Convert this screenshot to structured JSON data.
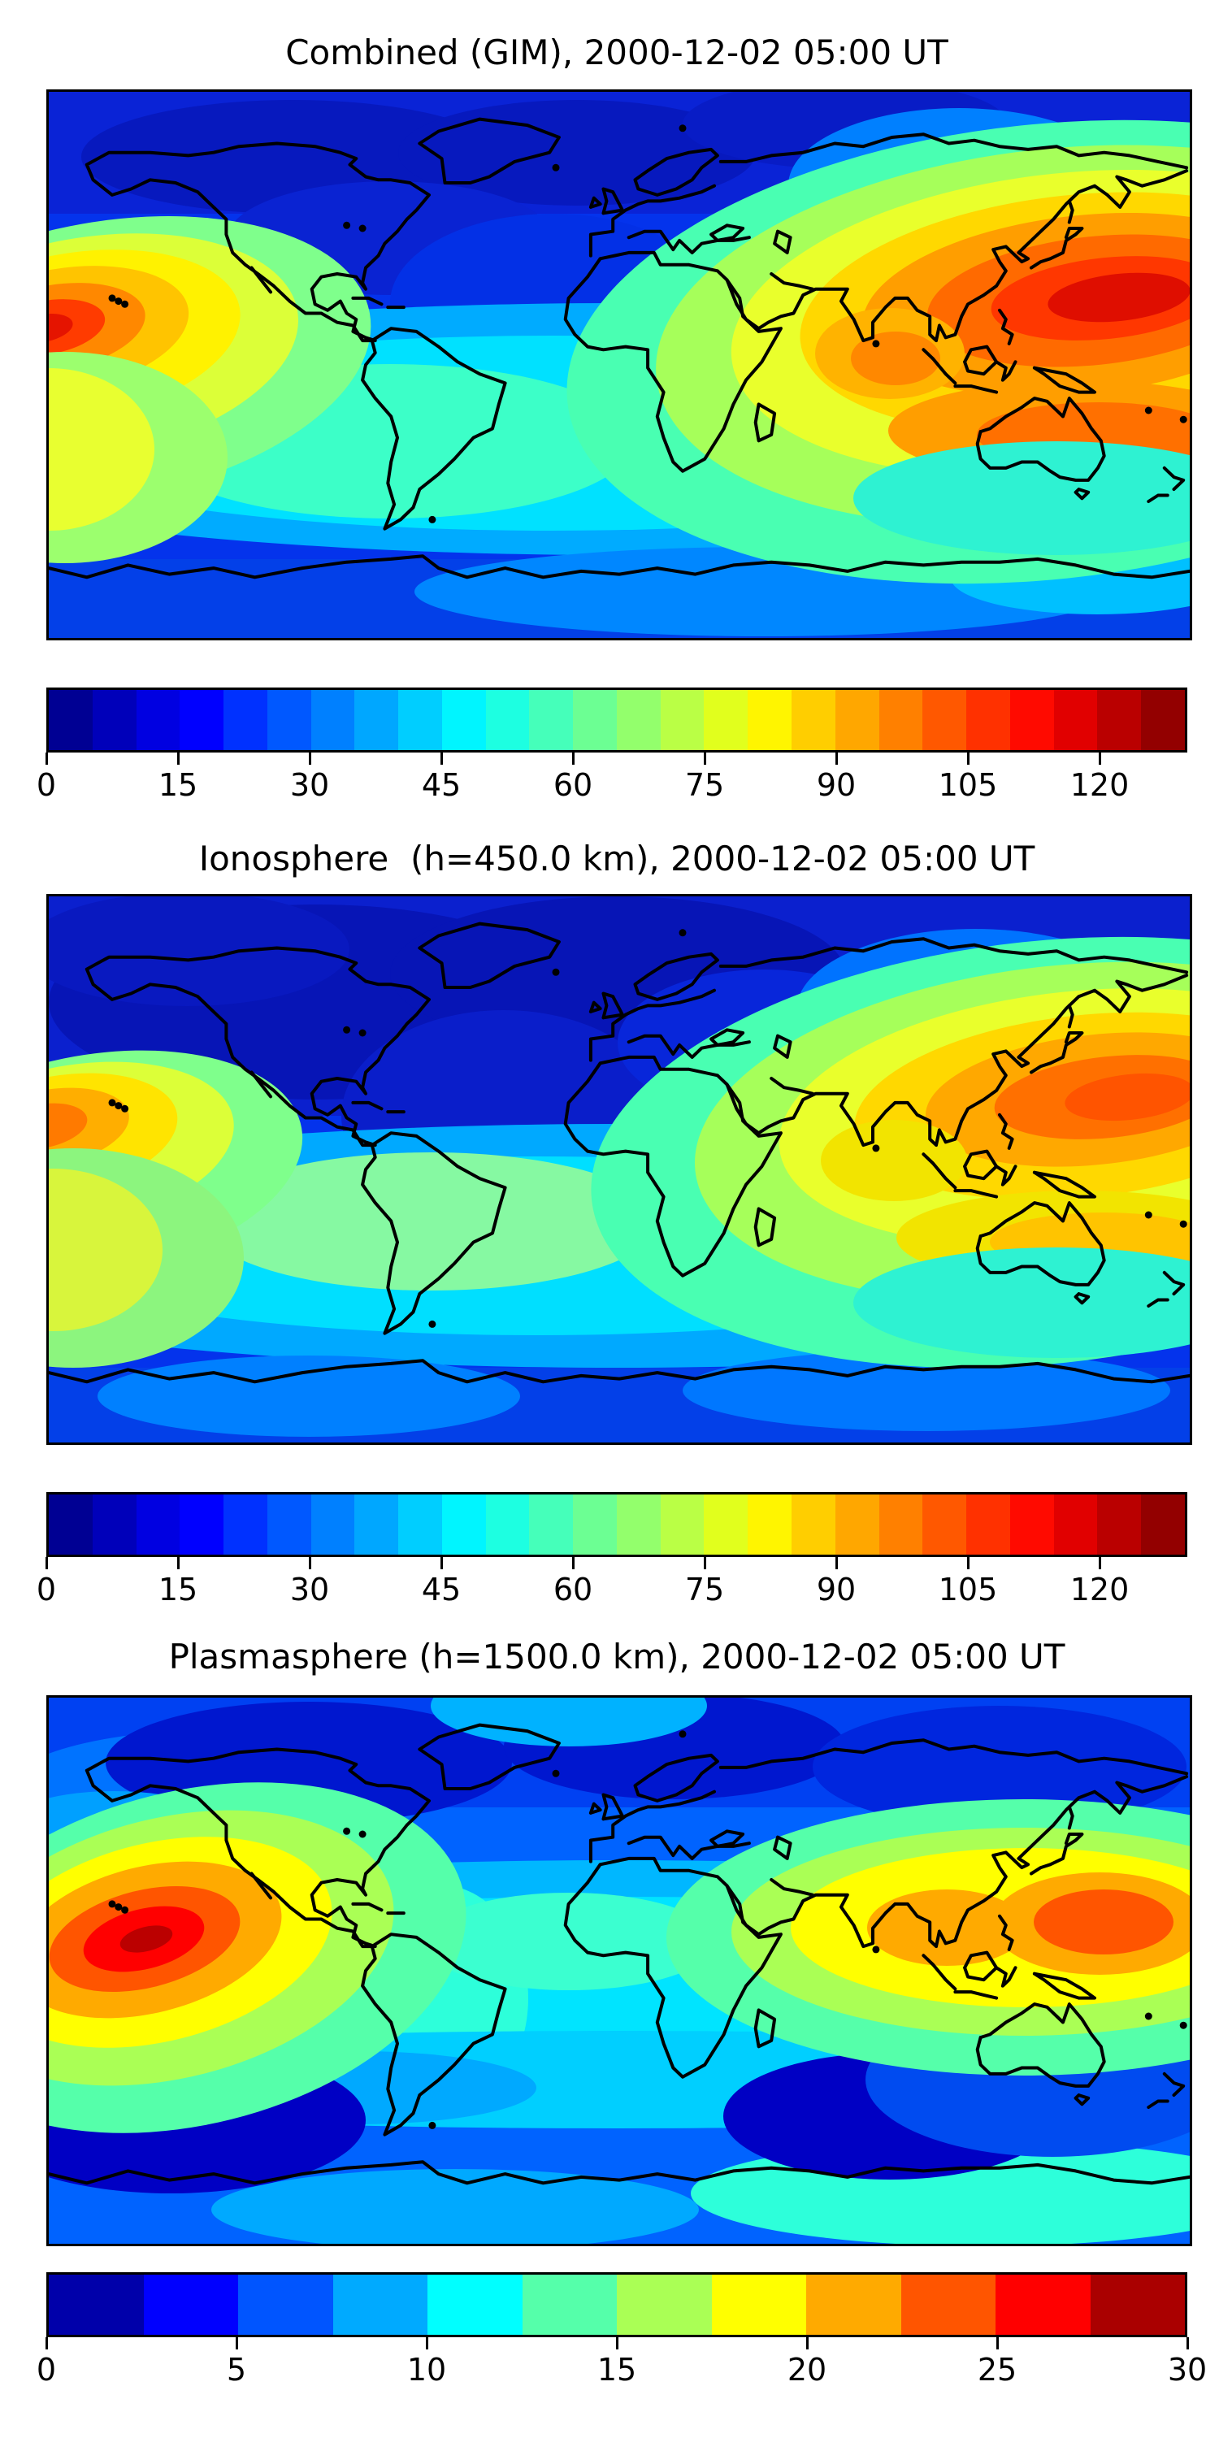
{
  "figure": {
    "background": "#ffffff",
    "text_color": "#000000",
    "frame_color": "#000000",
    "coastline_color": "#000000"
  },
  "panels": [
    {
      "id": "combined",
      "title": "Combined (GIM), 2000-12-02 05:00 UT",
      "layer": "Combined (GIM)",
      "datetime_ut": "2000-12-02 05:00 UT",
      "colorbar": {
        "min": 0,
        "max": 130,
        "band_step": 5,
        "ticks": [
          "0",
          "15",
          "30",
          "45",
          "60",
          "75",
          "90",
          "105",
          "120"
        ],
        "tick_values": [
          0,
          15,
          30,
          45,
          60,
          75,
          90,
          105,
          120
        ],
        "segment_colors": [
          "#000093",
          "#0000BA",
          "#0000E1",
          "#0000FF",
          "#0031FF",
          "#0058FF",
          "#0080FF",
          "#00A7FF",
          "#00CEFF",
          "#00F5FF",
          "#1DFFE1",
          "#45FFBA",
          "#6CFF93",
          "#93FF6C",
          "#BAFF45",
          "#E1FF1D",
          "#FFF500",
          "#FFCE00",
          "#FFA700",
          "#FF8000",
          "#FF5800",
          "#FF3100",
          "#FF0A00",
          "#E10000",
          "#BA0000",
          "#930000"
        ]
      }
    },
    {
      "id": "ionosphere",
      "title": "Ionosphere  (h=450.0 km), 2000-12-02 05:00 UT",
      "layer": "Ionosphere (h=450.0 km)",
      "datetime_ut": "2000-12-02 05:00 UT",
      "colorbar": {
        "min": 0,
        "max": 130,
        "band_step": 5,
        "ticks": [
          "0",
          "15",
          "30",
          "45",
          "60",
          "75",
          "90",
          "105",
          "120"
        ],
        "tick_values": [
          0,
          15,
          30,
          45,
          60,
          75,
          90,
          105,
          120
        ],
        "segment_colors": [
          "#000093",
          "#0000BA",
          "#0000E1",
          "#0000FF",
          "#0031FF",
          "#0058FF",
          "#0080FF",
          "#00A7FF",
          "#00CEFF",
          "#00F5FF",
          "#1DFFE1",
          "#45FFBA",
          "#6CFF93",
          "#93FF6C",
          "#BAFF45",
          "#E1FF1D",
          "#FFF500",
          "#FFCE00",
          "#FFA700",
          "#FF8000",
          "#FF5800",
          "#FF3100",
          "#FF0A00",
          "#E10000",
          "#BA0000",
          "#930000"
        ]
      }
    },
    {
      "id": "plasmasphere",
      "title": "Plasmasphere (h=1500.0 km), 2000-12-02 05:00 UT",
      "layer": "Plasmasphere (h=1500.0 km)",
      "datetime_ut": "2000-12-02 05:00 UT",
      "colorbar": {
        "min": 0,
        "max": 30,
        "band_step": 2.5,
        "ticks": [
          "0",
          "5",
          "10",
          "15",
          "20",
          "25",
          "30"
        ],
        "tick_values": [
          0,
          5,
          10,
          15,
          20,
          25,
          30
        ],
        "segment_colors": [
          "#0000AA",
          "#0000FF",
          "#0055FF",
          "#00AAFF",
          "#00FFFF",
          "#55FFAA",
          "#AAFF55",
          "#FFFF00",
          "#FFAA00",
          "#FF5500",
          "#FF0000",
          "#AA0000"
        ]
      }
    }
  ],
  "chart_data": [
    {
      "type": "heatmap",
      "subtype": "filled-contour world map",
      "title": "Combined (GIM), 2000-12-02 05:00 UT",
      "datetime_ut": "2000-12-02 05:00",
      "projection": "equirectangular, lon -180..180, lat -90..90, no axis ticks",
      "colormap": "jet, discrete bands",
      "value_range": [
        0,
        130
      ],
      "contour_interval": 5,
      "colorbar_ticks": [
        0,
        15,
        30,
        45,
        60,
        75,
        90,
        105,
        120
      ],
      "legend_position": "horizontal colorbar below map",
      "features": [
        {
          "label": "primary maximum",
          "location": "western Pacific east of Japan/Philippines (~145E, 20N)",
          "approx_peak": 125
        },
        {
          "label": "secondary maximum",
          "location": "eastern Pacific at left map edge (~180W, 15N)",
          "approx_peak": 115
        },
        {
          "label": "elevated band",
          "location": "low-latitude band over India, SE Asia, Indonesia, N Australia",
          "approx_value": "60-100"
        },
        {
          "label": "minimum",
          "location": "high northern latitudes (N America, N Atlantic, Europe)",
          "approx_value": "5-15"
        },
        {
          "label": "moderate band",
          "location": "southern mid-latitude cyan band",
          "approx_value": "35-55"
        }
      ]
    },
    {
      "type": "heatmap",
      "subtype": "filled-contour world map",
      "title": "Ionosphere  (h=450.0 km), 2000-12-02 05:00 UT",
      "datetime_ut": "2000-12-02 05:00",
      "projection": "equirectangular, lon -180..180, lat -90..90, no axis ticks",
      "colormap": "jet, discrete bands",
      "value_range": [
        0,
        130
      ],
      "contour_interval": 5,
      "colorbar_ticks": [
        0,
        15,
        30,
        45,
        60,
        75,
        90,
        105,
        120
      ],
      "legend_position": "horizontal colorbar below map",
      "features": [
        {
          "label": "primary maximum",
          "location": "western Pacific east of Japan (~145E, 20N)",
          "approx_peak": 105
        },
        {
          "label": "secondary maximum",
          "location": "eastern Pacific at left map edge (~180W, 15N)",
          "approx_peak": 95
        },
        {
          "label": "elevated band",
          "location": "yellow band over India, SE Asia, New Guinea",
          "approx_value": "55-85"
        },
        {
          "label": "minimum",
          "location": "dark navy region over N America / N Atlantic / Europe",
          "approx_value": "3-10"
        }
      ]
    },
    {
      "type": "heatmap",
      "subtype": "filled-contour world map",
      "title": "Plasmasphere (h=1500.0 km), 2000-12-02 05:00 UT",
      "datetime_ut": "2000-12-02 05:00",
      "projection": "equirectangular, lon -180..180, lat -90..90, no axis ticks",
      "colormap": "jet, discrete bands",
      "value_range": [
        0,
        30
      ],
      "contour_interval": 2.5,
      "colorbar_ticks": [
        0,
        5,
        10,
        15,
        20,
        25,
        30
      ],
      "legend_position": "horizontal colorbar below map",
      "features": [
        {
          "label": "primary maximum",
          "location": "central-east Pacific (~150W, 10N)",
          "approx_peak": 29
        },
        {
          "label": "secondary maximum",
          "location": "western Pacific east of Philippines (~135E, 12N) and SE Asia (~100E, 12N)",
          "approx_peak": 24
        },
        {
          "label": "minima",
          "location": "dark navy cells: south Pacific, south Indian Ocean, N Canada, N Europe, NE Asia",
          "approx_value": "0-2.5"
        },
        {
          "label": "moderate bands",
          "location": "cyan equatorial and southern mid-latitude bands",
          "approx_value": "10-15"
        }
      ]
    }
  ]
}
